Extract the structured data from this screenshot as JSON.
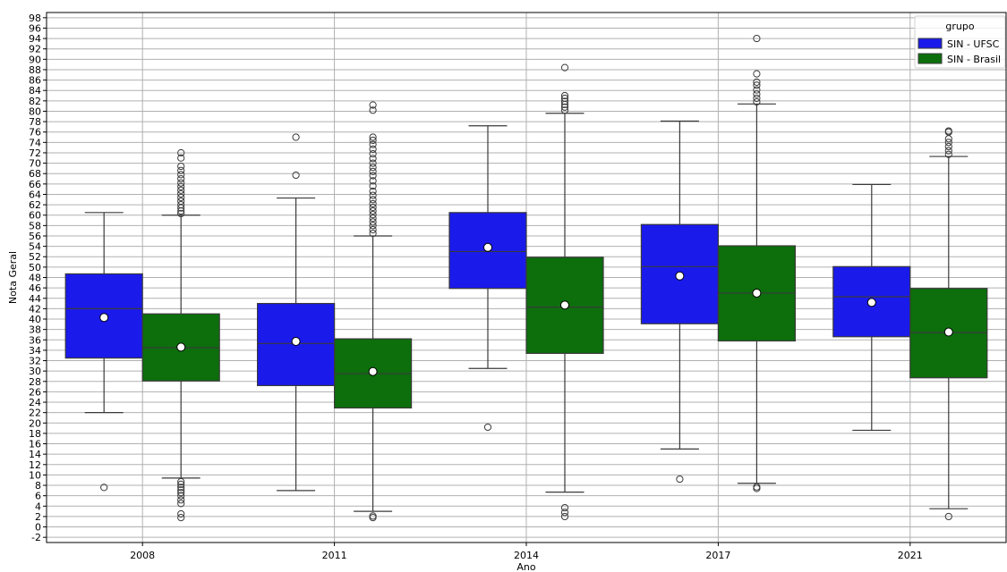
{
  "chart_data": {
    "type": "boxplot",
    "xlabel": "Ano",
    "ylabel": "Nota Geral",
    "categories": [
      "2008",
      "2011",
      "2014",
      "2017",
      "2021"
    ],
    "ylim": [
      -3,
      99
    ],
    "yticks": [
      -2,
      0,
      2,
      4,
      6,
      8,
      10,
      12,
      14,
      16,
      18,
      20,
      22,
      24,
      26,
      28,
      30,
      32,
      34,
      36,
      38,
      40,
      42,
      44,
      46,
      48,
      50,
      52,
      54,
      56,
      58,
      60,
      62,
      64,
      66,
      68,
      70,
      72,
      74,
      76,
      78,
      80,
      82,
      84,
      86,
      88,
      90,
      92,
      94,
      96,
      98
    ],
    "grid": true,
    "show_means": true,
    "legend": {
      "title": "grupo",
      "position": "top-right"
    },
    "series": [
      {
        "name": "SIN - UFSC",
        "color": "#1a1aeb",
        "boxes": [
          {
            "whislo": 22.0,
            "q1": 32.5,
            "med": 42.0,
            "q3": 48.7,
            "whishi": 60.5,
            "mean": 40.3,
            "fliers": [
              7.6
            ]
          },
          {
            "whislo": 7.0,
            "q1": 27.2,
            "med": 35.3,
            "q3": 43.0,
            "whishi": 63.3,
            "mean": 35.7,
            "fliers": [
              67.7,
              75.0
            ]
          },
          {
            "whislo": 30.5,
            "q1": 45.9,
            "med": 53.0,
            "q3": 60.5,
            "whishi": 77.2,
            "mean": 53.8,
            "fliers": [
              19.2
            ]
          },
          {
            "whislo": 15.0,
            "q1": 39.1,
            "med": 50.1,
            "q3": 58.2,
            "whishi": 78.1,
            "mean": 48.3,
            "fliers": [
              9.2
            ]
          },
          {
            "whislo": 18.6,
            "q1": 36.6,
            "med": 44.3,
            "q3": 50.1,
            "whishi": 65.9,
            "mean": 43.2,
            "fliers": []
          }
        ]
      },
      {
        "name": "SIN - Brasil",
        "color": "#0c6f0c",
        "boxes": [
          {
            "whislo": 9.4,
            "q1": 28.1,
            "med": 34.5,
            "q3": 41.0,
            "whishi": 60.0,
            "mean": 34.6,
            "fliers": [
              1.8,
              2.5,
              4.5,
              5.2,
              6.0,
              6.6,
              7.1,
              7.6,
              8.2,
              8.7,
              60.3,
              60.8,
              61.4,
              62.0,
              62.7,
              63.4,
              64.1,
              64.8,
              65.5,
              66.2,
              67.0,
              67.8,
              68.6,
              69.4,
              71.0,
              72.0
            ]
          },
          {
            "whislo": 3.0,
            "q1": 22.9,
            "med": 29.5,
            "q3": 36.2,
            "whishi": 56.0,
            "mean": 29.9,
            "fliers": [
              1.8,
              2.1,
              56.5,
              57.2,
              58.0,
              58.7,
              59.4,
              60.1,
              60.8,
              61.5,
              62.2,
              63.0,
              63.8,
              64.6,
              65.6,
              66.6,
              67.6,
              68.4,
              69.2,
              70.0,
              70.9,
              71.8,
              72.7,
              73.6,
              74.4,
              75.0,
              80.2,
              81.2
            ]
          },
          {
            "whislo": 6.7,
            "q1": 33.4,
            "med": 42.3,
            "q3": 51.9,
            "whishi": 79.6,
            "mean": 42.7,
            "fliers": [
              2.0,
              2.8,
              3.7,
              80.2,
              80.8,
              81.3,
              81.9,
              82.5,
              83.0,
              88.4
            ]
          },
          {
            "whislo": 8.4,
            "q1": 35.8,
            "med": 45.0,
            "q3": 54.1,
            "whishi": 81.4,
            "mean": 45.0,
            "fliers": [
              7.4,
              7.7,
              81.8,
              82.5,
              83.3,
              84.1,
              85.0,
              85.6,
              87.2,
              94.0
            ]
          },
          {
            "whislo": 3.5,
            "q1": 28.7,
            "med": 37.4,
            "q3": 45.9,
            "whishi": 71.3,
            "mean": 37.5,
            "fliers": [
              2.0,
              71.7,
              72.4,
              73.2,
              74.0,
              74.7,
              76.0,
              76.2
            ]
          }
        ]
      }
    ]
  }
}
